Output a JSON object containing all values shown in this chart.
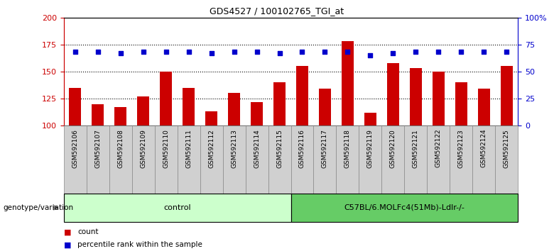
{
  "title": "GDS4527 / 100102765_TGI_at",
  "samples": [
    "GSM592106",
    "GSM592107",
    "GSM592108",
    "GSM592109",
    "GSM592110",
    "GSM592111",
    "GSM592112",
    "GSM592113",
    "GSM592114",
    "GSM592115",
    "GSM592116",
    "GSM592117",
    "GSM592118",
    "GSM592119",
    "GSM592120",
    "GSM592121",
    "GSM592122",
    "GSM592123",
    "GSM592124",
    "GSM592125"
  ],
  "bar_values": [
    135,
    120,
    117,
    127,
    150,
    135,
    113,
    130,
    122,
    140,
    155,
    134,
    178,
    112,
    158,
    153,
    150,
    140,
    134,
    155
  ],
  "dot_values": [
    68,
    68,
    67,
    68,
    68,
    68,
    67,
    68,
    68,
    67,
    68,
    68,
    68,
    65,
    67,
    68,
    68,
    68,
    68,
    68
  ],
  "bar_color": "#cc0000",
  "dot_color": "#0000cc",
  "ylim_left": [
    100,
    200
  ],
  "ylim_right": [
    0,
    100
  ],
  "yticks_left": [
    100,
    125,
    150,
    175,
    200
  ],
  "yticks_right": [
    0,
    25,
    50,
    75,
    100
  ],
  "ytick_labels_right": [
    "0",
    "25",
    "50",
    "75",
    "100%"
  ],
  "group1_label": "control",
  "group2_label": "C57BL/6.MOLFc4(51Mb)-Ldlr-/-",
  "group1_count": 10,
  "group2_count": 10,
  "group_row_label": "genotype/variation",
  "legend_bar": "count",
  "legend_dot": "percentile rank within the sample",
  "group1_color": "#ccffcc",
  "group2_color": "#66cc66",
  "xlabel_color": "#cc0000",
  "ylabel_right_color": "#0000cc",
  "hline_values": [
    125,
    150,
    175
  ],
  "bar_bottom": 100
}
